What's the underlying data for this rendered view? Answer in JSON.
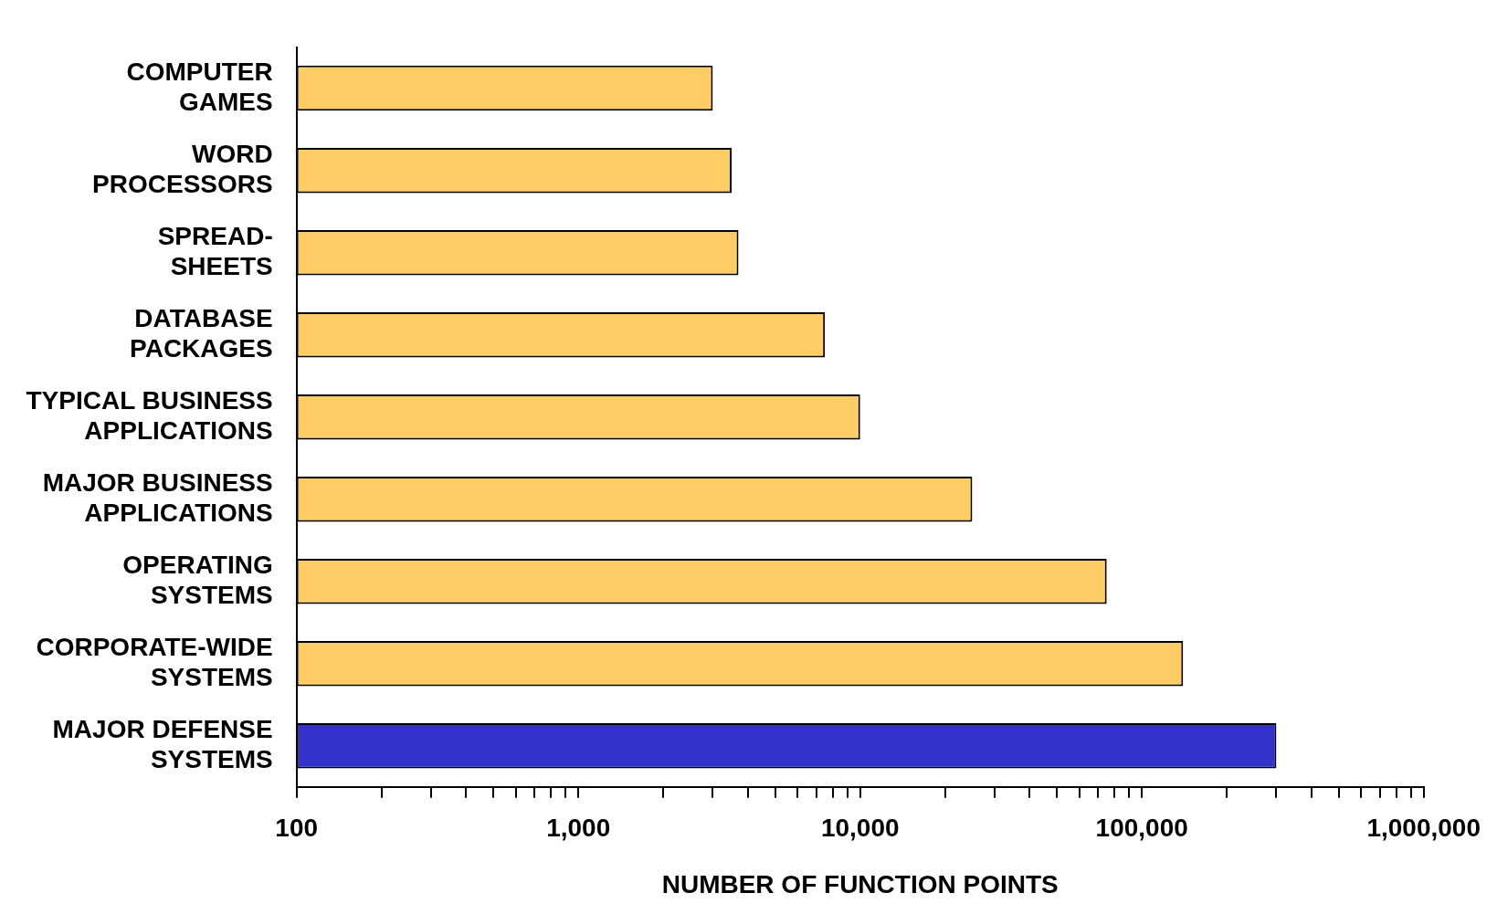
{
  "chart_data": {
    "type": "bar",
    "orientation": "horizontal",
    "xlabel": "NUMBER OF FUNCTION POINTS",
    "categories": [
      "COMPUTER\nGAMES",
      "WORD\nPROCESSORS",
      "SPREAD-\nSHEETS",
      "DATABASE\nPACKAGES",
      "TYPICAL BUSINESS\nAPPLICATIONS",
      "MAJOR BUSINESS\nAPPLICATIONS",
      "OPERATING\nSYSTEMS",
      "CORPORATE-WIDE\nSYSTEMS",
      "MAJOR DEFENSE\nSYSTEMS"
    ],
    "values": [
      3000,
      3500,
      3700,
      7500,
      10000,
      25000,
      75000,
      140000,
      300000
    ],
    "colors": [
      "#ffcc66",
      "#ffcc66",
      "#ffcc66",
      "#ffcc66",
      "#ffcc66",
      "#ffcc66",
      "#ffcc66",
      "#ffcc66",
      "#3333cc"
    ],
    "log": "x",
    "xlim": [
      100,
      1000000
    ],
    "xticks": [
      100,
      {
        "value": 200,
        "label": null
      },
      {
        "value": 300,
        "label": null
      },
      {
        "value": 400,
        "label": null
      },
      {
        "value": 500,
        "label": null
      },
      {
        "value": 600,
        "label": null
      },
      {
        "value": 700,
        "label": null
      },
      {
        "value": 800,
        "label": null
      },
      {
        "value": 900,
        "label": null
      },
      {
        "value": 1000,
        "label": "1,000"
      },
      {
        "value": 2000,
        "label": null
      },
      {
        "value": 3000,
        "label": null
      },
      {
        "value": 4000,
        "label": null
      },
      {
        "value": 5000,
        "label": null
      },
      {
        "value": 6000,
        "label": null
      },
      {
        "value": 7000,
        "label": null
      },
      {
        "value": 8000,
        "label": null
      },
      {
        "value": 9000,
        "label": null
      },
      {
        "value": 10000,
        "label": "10,000"
      },
      {
        "value": 20000,
        "label": null
      },
      {
        "value": 30000,
        "label": null
      },
      {
        "value": 40000,
        "label": null
      },
      {
        "value": 50000,
        "label": null
      },
      {
        "value": 60000,
        "label": null
      },
      {
        "value": 70000,
        "label": null
      },
      {
        "value": 80000,
        "label": null
      },
      {
        "value": 90000,
        "label": null
      },
      {
        "value": 100000,
        "label": "100,000"
      },
      {
        "value": 200000,
        "label": null
      },
      {
        "value": 300000,
        "label": null
      },
      {
        "value": 400000,
        "label": null
      },
      {
        "value": 500000,
        "label": null
      },
      {
        "value": 600000,
        "label": null
      },
      {
        "value": 700000,
        "label": null
      },
      {
        "value": 800000,
        "label": null
      },
      {
        "value": 900000,
        "label": null
      },
      {
        "value": 1000000,
        "label": "1,000,000"
      }
    ],
    "grid": false,
    "legend": false
  }
}
